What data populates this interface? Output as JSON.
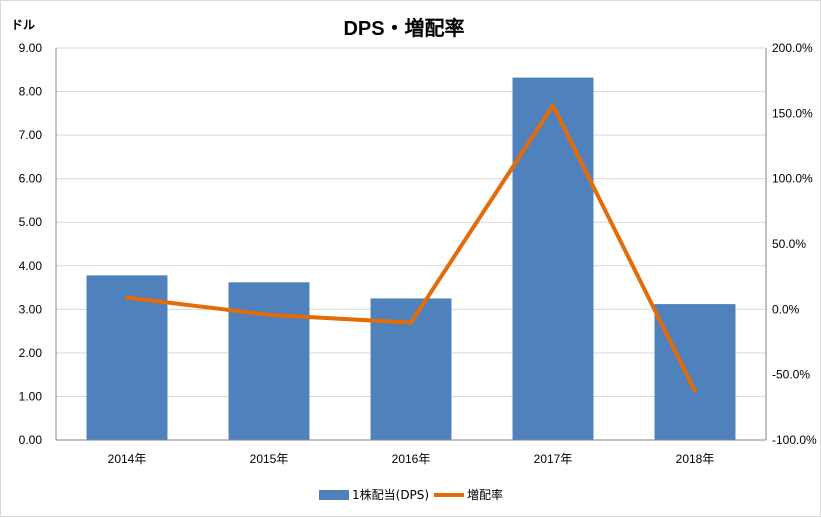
{
  "chart_data": {
    "type": "bar",
    "title": "DPS・増配率",
    "y_unit_label": "ドル",
    "categories": [
      "2014年",
      "2015年",
      "2016年",
      "2017年",
      "2018年"
    ],
    "series": [
      {
        "name": "1株配当(DPS)",
        "type": "bar",
        "axis": "left",
        "color": "#4f81bd",
        "values": [
          3.78,
          3.62,
          3.25,
          8.32,
          3.12
        ]
      },
      {
        "name": "増配率",
        "type": "line",
        "axis": "right",
        "color": "#e36c09",
        "values": [
          9.0,
          -4.2,
          -10.2,
          156.0,
          -62.5
        ]
      }
    ],
    "y_left": {
      "min": 0,
      "max": 9,
      "step": 1,
      "ticks": [
        "0.00",
        "1.00",
        "2.00",
        "3.00",
        "4.00",
        "5.00",
        "6.00",
        "7.00",
        "8.00",
        "9.00"
      ]
    },
    "y_right": {
      "min": -100,
      "max": 200,
      "step": 50,
      "ticks": [
        "-100.0%",
        "-50.0%",
        "0.0%",
        "50.0%",
        "100.0%",
        "150.0%",
        "200.0%"
      ]
    },
    "grid": true,
    "legend_position": "bottom"
  }
}
